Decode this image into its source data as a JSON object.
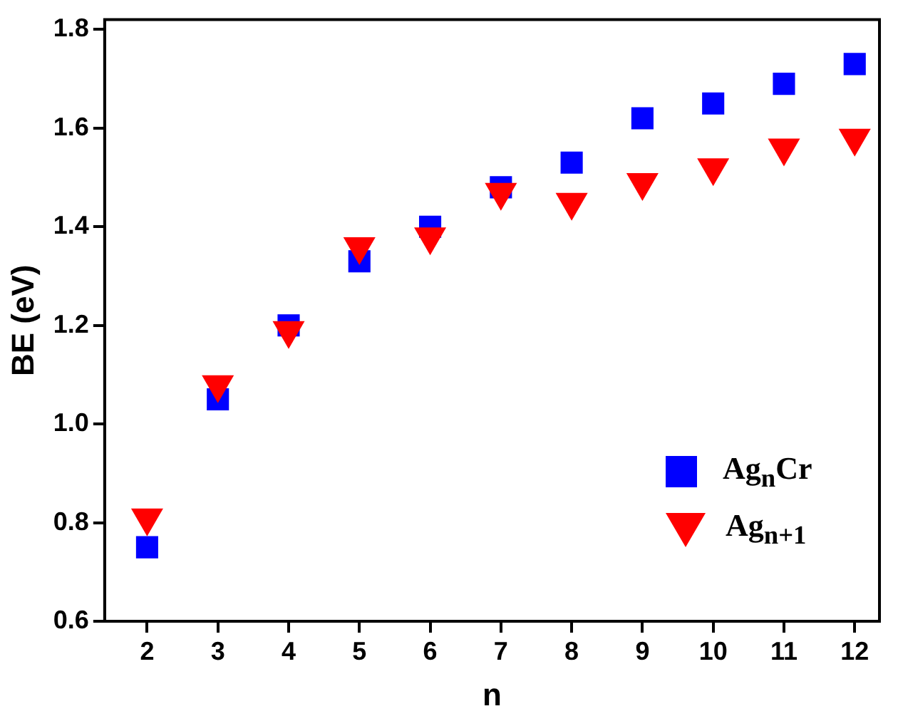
{
  "chart_data": {
    "type": "scatter",
    "xlabel": "n",
    "ylabel": "BE (eV)",
    "x": [
      2,
      3,
      4,
      5,
      6,
      7,
      8,
      9,
      10,
      11,
      12
    ],
    "xlim": [
      1.4,
      12.35
    ],
    "xticks": [
      2,
      3,
      4,
      5,
      6,
      7,
      8,
      9,
      10,
      11,
      12
    ],
    "ylim": [
      0.6,
      1.82
    ],
    "yticks": [
      {
        "value": 0.6,
        "label": "0.6"
      },
      {
        "value": 0.8,
        "label": "0.8"
      },
      {
        "value": 1,
        "label": "1.0"
      },
      {
        "value": 1.2,
        "label": "1.2"
      },
      {
        "value": 1.4,
        "label": "1.4"
      },
      {
        "value": 1.6,
        "label": "1.6"
      },
      {
        "value": 1.8,
        "label": "1.8"
      }
    ],
    "grid": false,
    "legend": "bottom right",
    "series": [
      {
        "name": "Ag$_{n}$Cr",
        "color": "#0000ff",
        "marker": "square",
        "values": [
          0.75,
          1.05,
          1.2,
          1.33,
          1.4,
          1.48,
          1.53,
          1.62,
          1.65,
          1.69,
          1.73
        ]
      },
      {
        "name": "Ag$_{n+1}$",
        "color": "#ff0000",
        "marker": "triangle",
        "values": [
          0.81,
          1.08,
          1.19,
          1.36,
          1.38,
          1.47,
          1.45,
          1.49,
          1.52,
          1.56,
          1.58
        ]
      }
    ]
  }
}
